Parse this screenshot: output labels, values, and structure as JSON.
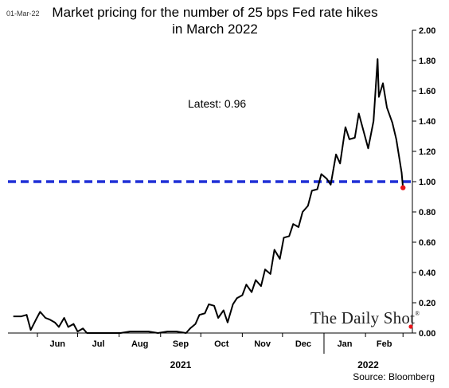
{
  "date_stamp": "01-Mar-22",
  "brand": {
    "name": "The Daily Shot",
    "mark": "®"
  },
  "chart_data": {
    "type": "line",
    "title_line1": "Market pricing for the number of 25 bps Fed rate hikes",
    "title_line2": "in March 2022",
    "annotation": "Latest:  0.96",
    "source": "Source: Bloomberg",
    "ylim": [
      0,
      2
    ],
    "y_ticks": [
      "0.00",
      "0.20",
      "0.40",
      "0.60",
      "0.80",
      "1.00",
      "1.20",
      "1.40",
      "1.60",
      "1.80",
      "2.00"
    ],
    "y_axis_side": "right",
    "grid": false,
    "x_month_labels": [
      "Jun",
      "Jul",
      "Aug",
      "Sep",
      "Oct",
      "Nov",
      "Dec",
      "Jan",
      "Feb"
    ],
    "year_labels": [
      "2021",
      "2022"
    ],
    "reference_line": {
      "value": 1.0,
      "color": "#1f2fd6",
      "style": "dashed"
    },
    "latest_point": {
      "value": 0.96,
      "color": "#e8151b"
    },
    "series": [
      {
        "color": "#000000",
        "x": [
          "2021-05-14",
          "2021-05-20",
          "2021-05-24",
          "2021-05-27",
          "2021-05-31",
          "2021-06-03",
          "2021-06-07",
          "2021-06-10",
          "2021-06-14",
          "2021-06-17",
          "2021-06-21",
          "2021-06-24",
          "2021-06-28",
          "2021-07-01",
          "2021-07-05",
          "2021-07-08",
          "2021-07-12",
          "2021-07-19",
          "2021-07-26",
          "2021-08-02",
          "2021-08-09",
          "2021-08-16",
          "2021-08-23",
          "2021-08-30",
          "2021-09-06",
          "2021-09-13",
          "2021-09-20",
          "2021-09-23",
          "2021-09-27",
          "2021-09-30",
          "2021-10-04",
          "2021-10-07",
          "2021-10-11",
          "2021-10-14",
          "2021-10-18",
          "2021-10-21",
          "2021-10-25",
          "2021-10-28",
          "2021-11-01",
          "2021-11-04",
          "2021-11-08",
          "2021-11-11",
          "2021-11-15",
          "2021-11-18",
          "2021-11-22",
          "2021-11-25",
          "2021-11-29",
          "2021-12-02",
          "2021-12-06",
          "2021-12-09",
          "2021-12-13",
          "2021-12-16",
          "2021-12-20",
          "2021-12-23",
          "2021-12-27",
          "2021-12-30",
          "2022-01-03",
          "2022-01-06",
          "2022-01-10",
          "2022-01-13",
          "2022-01-17",
          "2022-01-20",
          "2022-01-24",
          "2022-01-27",
          "2022-01-31",
          "2022-02-03",
          "2022-02-07",
          "2022-02-10",
          "2022-02-11",
          "2022-02-14",
          "2022-02-17",
          "2022-02-21",
          "2022-02-24",
          "2022-02-28",
          "2022-03-01"
        ],
        "y": [
          0.11,
          0.11,
          0.12,
          0.02,
          0.09,
          0.14,
          0.1,
          0.09,
          0.07,
          0.04,
          0.1,
          0.04,
          0.06,
          0.01,
          0.03,
          0.0,
          0.0,
          0.0,
          0.0,
          0.0,
          0.01,
          0.01,
          0.01,
          0.0,
          0.01,
          0.01,
          0.0,
          0.03,
          0.06,
          0.12,
          0.13,
          0.19,
          0.18,
          0.1,
          0.15,
          0.07,
          0.19,
          0.23,
          0.25,
          0.32,
          0.27,
          0.35,
          0.31,
          0.42,
          0.39,
          0.55,
          0.49,
          0.63,
          0.64,
          0.72,
          0.7,
          0.8,
          0.84,
          0.94,
          0.95,
          1.05,
          1.02,
          0.98,
          1.18,
          1.12,
          1.36,
          1.28,
          1.29,
          1.45,
          1.32,
          1.22,
          1.4,
          1.81,
          1.56,
          1.65,
          1.49,
          1.39,
          1.28,
          1.06,
          0.96
        ]
      }
    ]
  }
}
